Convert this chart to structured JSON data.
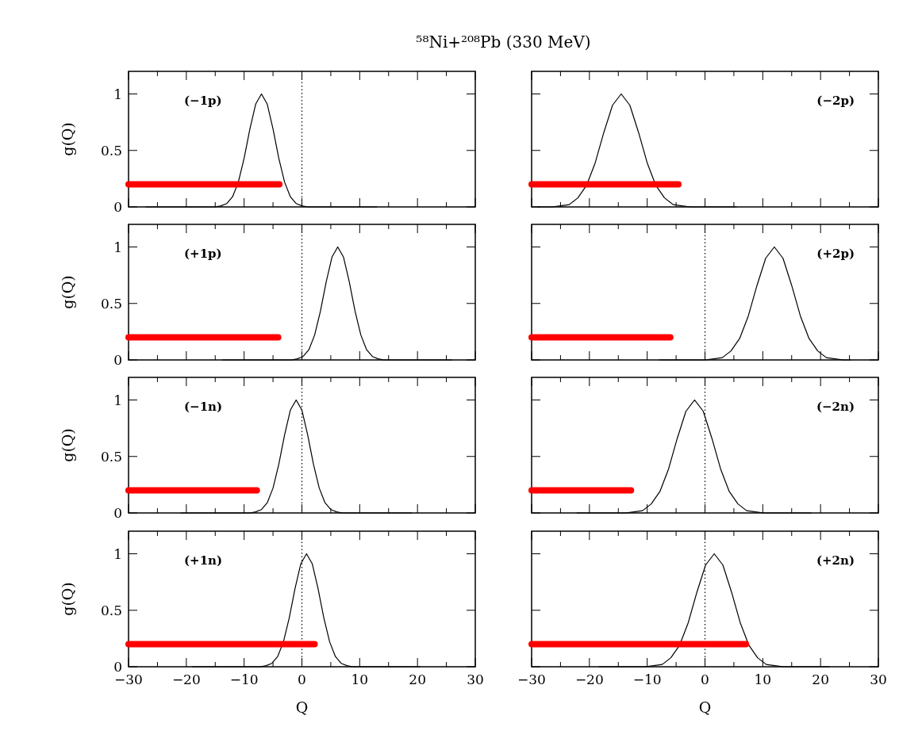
{
  "chart_data": [
    {
      "type": "line",
      "title": "⁵⁸Ni+²⁰⁸Pb (330 MeV)",
      "ylabel": "g(Q)",
      "xlim": [
        -30,
        30
      ],
      "ylim": [
        0,
        1.2
      ],
      "xticks": [
        -30,
        {
          "value": -25,
          "label": null
        },
        -20,
        {
          "value": -15,
          "label": null
        },
        -10,
        {
          "value": -5,
          "label": null
        },
        0,
        {
          "value": 5,
          "label": null
        },
        10,
        {
          "value": 15,
          "label": null
        },
        20,
        {
          "value": 25,
          "label": null
        },
        30
      ],
      "yticks": [
        0,
        0.5,
        1
      ],
      "tick_labels": "y",
      "annotations": [
        "(−1p)"
      ],
      "ref_lines": [
        {
          "axis": "x",
          "value": 0,
          "line_style": "dotted",
          "color": "#000000"
        }
      ],
      "series": [
        {
          "color": "#000000",
          "x": [
            -27,
            -15,
            -14,
            -13,
            -12,
            -11,
            -10,
            -9,
            -8,
            -7,
            -6,
            -5,
            -4,
            -3,
            -2,
            -1,
            0,
            1,
            13
          ],
          "values": [
            0,
            0,
            0.01,
            0.03,
            0.09,
            0.22,
            0.43,
            0.69,
            0.91,
            1,
            0.91,
            0.69,
            0.43,
            0.22,
            0.09,
            0.03,
            0.01,
            0,
            0
          ]
        },
        {
          "color": "#ff0000",
          "x": [
            -30,
            -3.9
          ],
          "values": [
            0.2,
            0.2
          ]
        }
      ]
    },
    {
      "type": "line",
      "xlim": [
        -30,
        30
      ],
      "ylim": [
        0,
        1.2
      ],
      "xticks": [
        -30,
        {
          "value": -25,
          "label": null
        },
        -20,
        {
          "value": -15,
          "label": null
        },
        -10,
        {
          "value": -5,
          "label": null
        },
        0,
        {
          "value": 5,
          "label": null
        },
        10,
        {
          "value": 15,
          "label": null
        },
        20,
        {
          "value": 25,
          "label": null
        },
        30
      ],
      "yticks": [
        0,
        0.5,
        1
      ],
      "tick_labels": false,
      "annotations": [
        "(−2p)"
      ],
      "series": [
        {
          "color": "#000000",
          "x": [
            -29,
            -26.5,
            -25,
            -23.5,
            -22,
            -20.5,
            -19,
            -17.5,
            -16,
            -14.5,
            -13,
            -11.5,
            -10,
            -8.5,
            -7,
            -5.5,
            -4,
            -2.5,
            5.5
          ],
          "values": [
            0,
            0,
            0.01,
            0.02,
            0.08,
            0.19,
            0.39,
            0.66,
            0.9,
            1,
            0.9,
            0.66,
            0.39,
            0.19,
            0.08,
            0.02,
            0.01,
            0,
            0
          ]
        },
        {
          "color": "#ff0000",
          "x": [
            -30,
            -4.6
          ],
          "values": [
            0.2,
            0.2
          ]
        }
      ]
    },
    {
      "type": "line",
      "ylabel": "g(Q)",
      "xlim": [
        -30,
        30
      ],
      "ylim": [
        0,
        1.2
      ],
      "xticks": [
        -30,
        {
          "value": -25,
          "label": null
        },
        -20,
        {
          "value": -15,
          "label": null
        },
        -10,
        {
          "value": -5,
          "label": null
        },
        0,
        {
          "value": 5,
          "label": null
        },
        10,
        {
          "value": 15,
          "label": null
        },
        20,
        {
          "value": 25,
          "label": null
        },
        30
      ],
      "yticks": [
        0,
        0.5,
        1
      ],
      "tick_labels": "y",
      "annotations": [
        "(+1p)"
      ],
      "ref_lines": [
        {
          "axis": "x",
          "value": 0,
          "line_style": "dotted",
          "color": "#000000"
        }
      ],
      "series": [
        {
          "color": "#000000",
          "x": [
            -13.8,
            -1.8,
            -0.8,
            0.2,
            1.2,
            2.2,
            3.2,
            4.2,
            5.2,
            6.2,
            7.2,
            8.2,
            9.2,
            10.2,
            11.2,
            12.2,
            13.2,
            14.2,
            26
          ],
          "values": [
            0,
            0,
            0.01,
            0.03,
            0.09,
            0.22,
            0.43,
            0.69,
            0.91,
            1,
            0.91,
            0.69,
            0.43,
            0.22,
            0.09,
            0.03,
            0.01,
            0,
            0
          ]
        },
        {
          "color": "#ff0000",
          "x": [
            -30,
            -4.1
          ],
          "values": [
            0.2,
            0.2
          ]
        }
      ]
    },
    {
      "type": "line",
      "xlim": [
        -30,
        30
      ],
      "ylim": [
        0,
        1.2
      ],
      "xticks": [
        -30,
        {
          "value": -25,
          "label": null
        },
        -20,
        {
          "value": -15,
          "label": null
        },
        -10,
        {
          "value": -5,
          "label": null
        },
        0,
        {
          "value": 5,
          "label": null
        },
        10,
        {
          "value": 15,
          "label": null
        },
        20,
        {
          "value": 25,
          "label": null
        },
        30
      ],
      "yticks": [
        0,
        0.5,
        1
      ],
      "tick_labels": false,
      "annotations": [
        "(+2p)"
      ],
      "ref_lines": [
        {
          "axis": "x",
          "value": 0,
          "line_style": "dotted",
          "color": "#000000"
        }
      ],
      "series": [
        {
          "color": "#000000",
          "x": [
            -7.9,
            0,
            1.5,
            3,
            4.5,
            6,
            7.5,
            9,
            10.5,
            12,
            13.5,
            15,
            16.5,
            18,
            19.5,
            21,
            22.5,
            24,
            25.3
          ],
          "values": [
            0,
            0,
            0.01,
            0.02,
            0.08,
            0.19,
            0.39,
            0.66,
            0.9,
            1,
            0.9,
            0.66,
            0.39,
            0.19,
            0.08,
            0.02,
            0.01,
            0,
            0
          ]
        },
        {
          "color": "#ff0000",
          "x": [
            -30,
            -6
          ],
          "values": [
            0.2,
            0.2
          ]
        }
      ]
    },
    {
      "type": "line",
      "ylabel": "g(Q)",
      "xlim": [
        -30,
        30
      ],
      "ylim": [
        0,
        1.2
      ],
      "xticks": [
        -30,
        {
          "value": -25,
          "label": null
        },
        -20,
        {
          "value": -15,
          "label": null
        },
        -10,
        {
          "value": -5,
          "label": null
        },
        0,
        {
          "value": 5,
          "label": null
        },
        10,
        {
          "value": 15,
          "label": null
        },
        20,
        {
          "value": 25,
          "label": null
        },
        30
      ],
      "yticks": [
        0,
        0.5,
        1
      ],
      "tick_labels": "y",
      "annotations": [
        "(−1n)"
      ],
      "ref_lines": [
        {
          "axis": "x",
          "value": 0,
          "line_style": "dotted",
          "color": "#000000"
        }
      ],
      "series": [
        {
          "color": "#000000",
          "x": [
            -21,
            -9,
            -8,
            -7,
            -6,
            -5,
            -4,
            -3,
            -2,
            -1,
            0,
            1,
            2,
            3,
            4,
            5,
            6,
            7,
            19
          ],
          "values": [
            0,
            0,
            0.01,
            0.03,
            0.09,
            0.22,
            0.43,
            0.69,
            0.91,
            1,
            0.91,
            0.69,
            0.43,
            0.22,
            0.09,
            0.03,
            0.01,
            0,
            0
          ]
        },
        {
          "color": "#ff0000",
          "x": [
            -30,
            -7.8
          ],
          "values": [
            0.2,
            0.2
          ]
        }
      ]
    },
    {
      "type": "line",
      "xlim": [
        -30,
        30
      ],
      "ylim": [
        0,
        1.2
      ],
      "xticks": [
        -30,
        {
          "value": -25,
          "label": null
        },
        -20,
        {
          "value": -15,
          "label": null
        },
        -10,
        {
          "value": -5,
          "label": null
        },
        0,
        {
          "value": 5,
          "label": null
        },
        10,
        {
          "value": 15,
          "label": null
        },
        20,
        {
          "value": 25,
          "label": null
        },
        30
      ],
      "yticks": [
        0,
        0.5,
        1
      ],
      "tick_labels": false,
      "annotations": [
        "(−2n)"
      ],
      "ref_lines": [
        {
          "axis": "x",
          "value": 0,
          "line_style": "dotted",
          "color": "#000000"
        }
      ],
      "series": [
        {
          "color": "#000000",
          "x": [
            -22.2,
            -13.8,
            -12.3,
            -10.8,
            -9.3,
            -7.8,
            -6.3,
            -4.8,
            -3.3,
            -1.8,
            -0.3,
            1.2,
            2.7,
            4.2,
            5.7,
            7.2,
            8.7,
            10.2,
            18.4
          ],
          "values": [
            0,
            0,
            0.01,
            0.02,
            0.08,
            0.19,
            0.39,
            0.66,
            0.9,
            1,
            0.9,
            0.66,
            0.39,
            0.19,
            0.08,
            0.02,
            0.01,
            0,
            0
          ]
        },
        {
          "color": "#ff0000",
          "x": [
            -30,
            -12.8
          ],
          "values": [
            0.2,
            0.2
          ]
        }
      ]
    },
    {
      "type": "line",
      "ylabel": "g(Q)",
      "xlabel": "Q",
      "xlim": [
        -30,
        30
      ],
      "ylim": [
        0,
        1.2
      ],
      "xticks": [
        -30,
        {
          "value": -25,
          "label": null
        },
        -20,
        {
          "value": -15,
          "label": null
        },
        -10,
        {
          "value": -5,
          "label": null
        },
        0,
        {
          "value": 5,
          "label": null
        },
        10,
        {
          "value": 15,
          "label": null
        },
        20,
        {
          "value": 25,
          "label": null
        },
        30
      ],
      "yticks": [
        0,
        0.5,
        1
      ],
      "annotations": [
        "(+1n)"
      ],
      "ref_lines": [
        {
          "axis": "x",
          "value": 0,
          "line_style": "dotted",
          "color": "#000000"
        }
      ],
      "series": [
        {
          "color": "#000000",
          "x": [
            -19,
            -7.2,
            -6.2,
            -5.2,
            -4.2,
            -3.2,
            -2.2,
            -1.2,
            -0.2,
            0.8,
            1.8,
            2.8,
            3.8,
            4.8,
            5.8,
            6.8,
            7.8,
            8.8,
            20.5
          ],
          "values": [
            0,
            0,
            0.01,
            0.03,
            0.09,
            0.22,
            0.43,
            0.69,
            0.91,
            1,
            0.91,
            0.69,
            0.43,
            0.22,
            0.09,
            0.03,
            0.01,
            0,
            0
          ]
        },
        {
          "color": "#ff0000",
          "x": [
            -30,
            2.2
          ],
          "values": [
            0.2,
            0.2
          ]
        }
      ]
    },
    {
      "type": "line",
      "xlabel": "Q",
      "xlim": [
        -30,
        30
      ],
      "ylim": [
        0,
        1.2
      ],
      "xticks": [
        -30,
        {
          "value": -25,
          "label": null
        },
        -20,
        {
          "value": -15,
          "label": null
        },
        -10,
        {
          "value": -5,
          "label": null
        },
        0,
        {
          "value": 5,
          "label": null
        },
        10,
        {
          "value": 15,
          "label": null
        },
        20,
        {
          "value": 25,
          "label": null
        },
        30
      ],
      "yticks": [
        0,
        0.5,
        1
      ],
      "tick_labels": "x",
      "annotations": [
        "(+2n)"
      ],
      "ref_lines": [
        {
          "axis": "x",
          "value": 0,
          "line_style": "dotted",
          "color": "#000000"
        }
      ],
      "series": [
        {
          "color": "#000000",
          "x": [
            -18.4,
            -10.4,
            -8.9,
            -7.4,
            -5.9,
            -4.4,
            -2.9,
            -1.4,
            0.1,
            1.6,
            3.1,
            4.6,
            6.1,
            7.6,
            9.1,
            10.6,
            12.1,
            13.6,
            21.6
          ],
          "values": [
            0,
            0,
            0.01,
            0.02,
            0.08,
            0.19,
            0.39,
            0.66,
            0.9,
            1,
            0.9,
            0.66,
            0.39,
            0.19,
            0.08,
            0.02,
            0.01,
            0,
            0
          ]
        },
        {
          "color": "#ff0000",
          "x": [
            -30,
            7.1
          ],
          "values": [
            0.2,
            0.2
          ]
        }
      ]
    }
  ]
}
